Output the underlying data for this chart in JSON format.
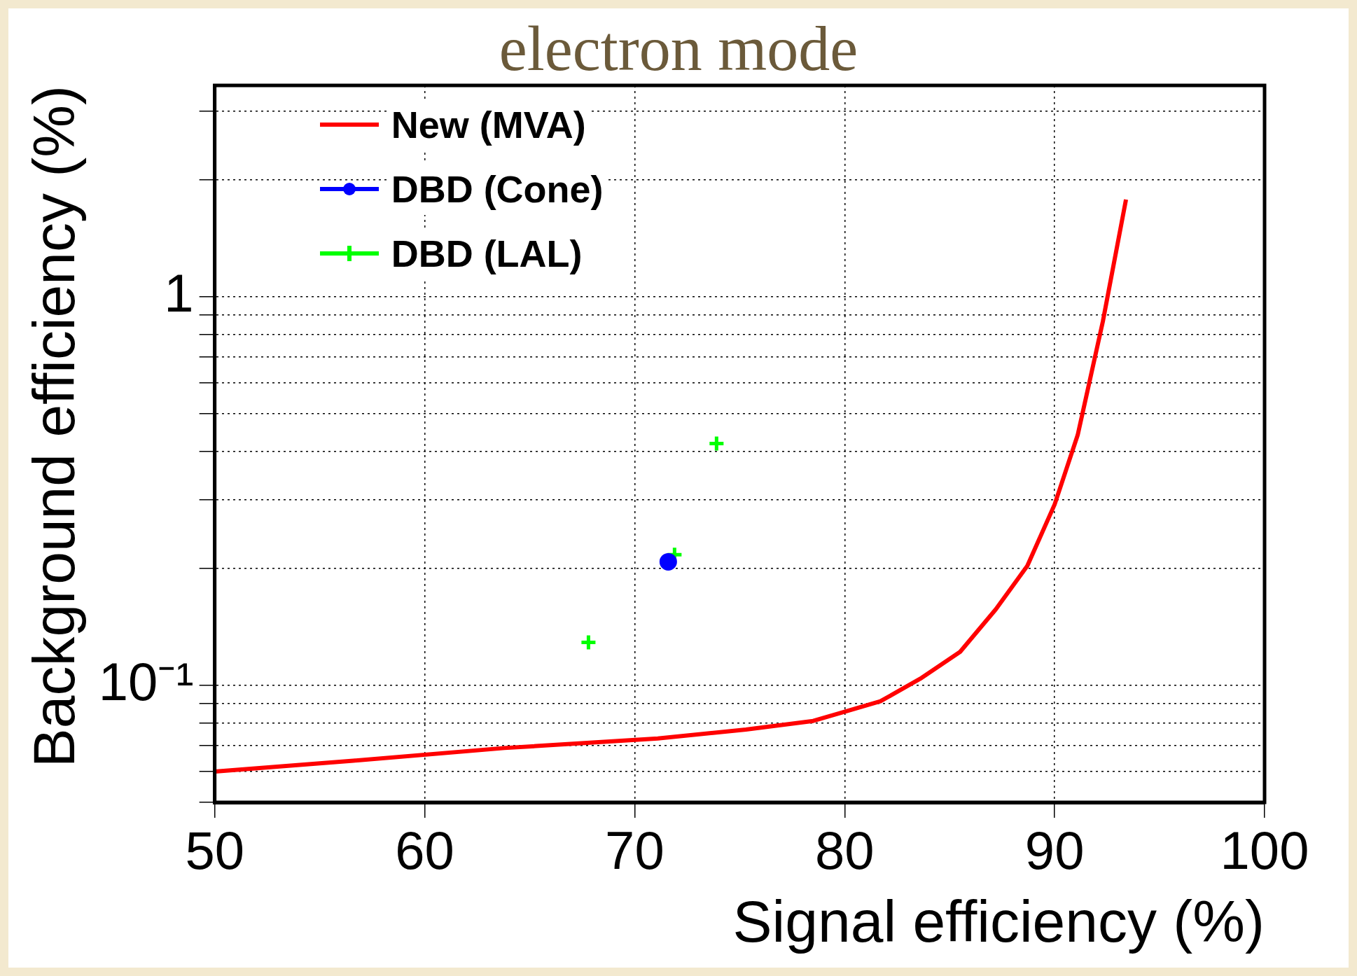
{
  "chart_data": {
    "type": "scatter",
    "title": "electron mode",
    "xlabel": "Signal efficiency (%)",
    "ylabel": "Background efficiency (%)",
    "xlim": [
      50,
      100
    ],
    "xticks": [
      50,
      60,
      70,
      80,
      90,
      100
    ],
    "ylim": [
      0.05,
      3.5
    ],
    "yticks": [
      {
        "value": 0.05,
        "label": null
      },
      {
        "value": 0.06,
        "label": null
      },
      {
        "value": 0.07,
        "label": null
      },
      {
        "value": 0.08,
        "label": null
      },
      {
        "value": 0.09,
        "label": null
      },
      {
        "value": 0.1,
        "label": "10⁻¹"
      },
      {
        "value": 0.2,
        "label": null
      },
      {
        "value": 0.3,
        "label": null
      },
      {
        "value": 0.4,
        "label": null
      },
      {
        "value": 0.5,
        "label": null
      },
      {
        "value": 0.6,
        "label": null
      },
      {
        "value": 0.7,
        "label": null
      },
      {
        "value": 0.8,
        "label": null
      },
      {
        "value": 0.9,
        "label": null
      },
      {
        "value": 1,
        "label": "1"
      },
      {
        "value": 2,
        "label": null
      },
      {
        "value": 3,
        "label": null
      }
    ],
    "log": "y",
    "grid": true,
    "legend": "top left",
    "series": [
      {
        "name": "New (MVA)",
        "type": "line",
        "color": "#ff0000",
        "marker": "none",
        "x": [
          50,
          56.6,
          63.8,
          71.1,
          75.3,
          78.5,
          81.7,
          83.6,
          85.5,
          87.2,
          88.7,
          90.0,
          91.1,
          92.3,
          93.4
        ],
        "values": [
          0.06,
          0.064,
          0.069,
          0.073,
          0.077,
          0.081,
          0.091,
          0.104,
          0.122,
          0.157,
          0.203,
          0.292,
          0.441,
          0.865,
          1.78
        ]
      },
      {
        "name": "DBD (Cone)",
        "type": "scatter",
        "color": "#0000ff",
        "marker": "circle",
        "x": [
          71.6
        ],
        "values": [
          0.208
        ]
      },
      {
        "name": "DBD (LAL)",
        "type": "scatter",
        "color": "#00ff00",
        "marker": "cross",
        "x": [
          67.8,
          71.9,
          73.9
        ],
        "values": [
          0.129,
          0.217,
          0.419
        ]
      }
    ]
  }
}
